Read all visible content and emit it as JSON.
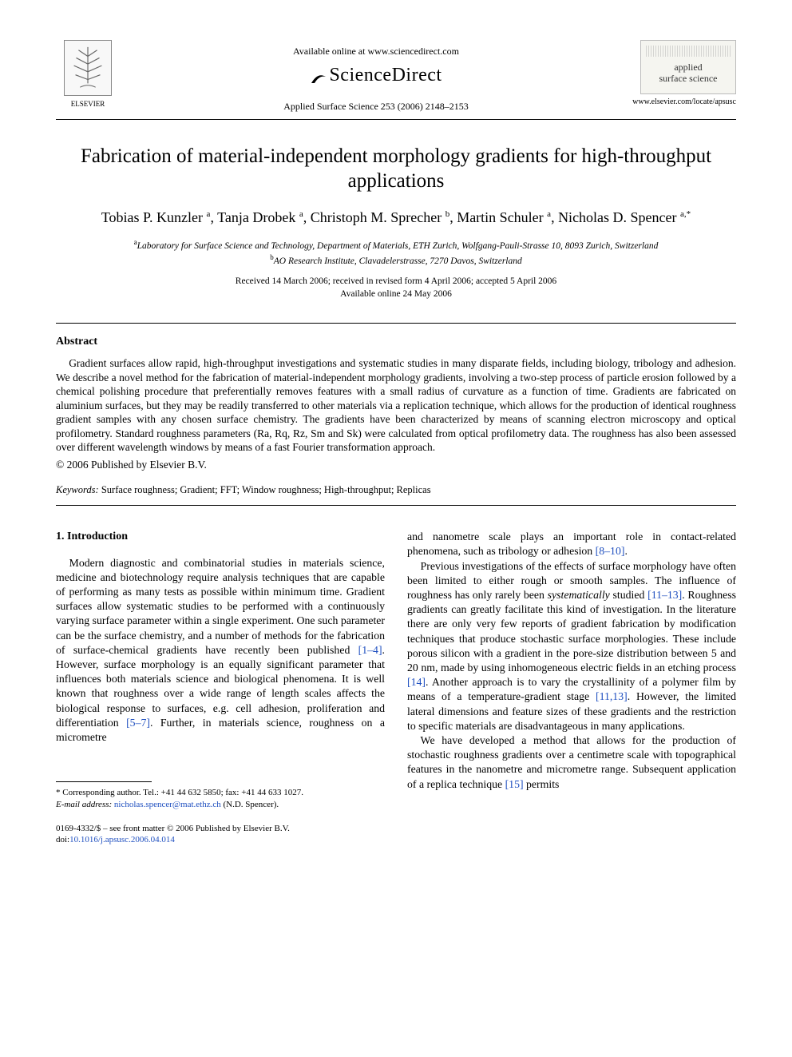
{
  "header": {
    "elsevier_label": "ELSEVIER",
    "available_online": "Available online at www.sciencedirect.com",
    "sciencedirect": "ScienceDirect",
    "journal_ref": "Applied Surface Science 253 (2006) 2148–2153",
    "cover_title_line1": "applied",
    "cover_title_line2": "surface science",
    "journal_url": "www.elsevier.com/locate/apsusc"
  },
  "article": {
    "title": "Fabrication of material-independent morphology gradients for high-throughput applications",
    "authors_html": "Tobias P. Kunzler <sup>a</sup>, Tanja Drobek <sup>a</sup>, Christoph M. Sprecher <sup>b</sup>, Martin Schuler <sup>a</sup>, Nicholas D. Spencer <sup>a,*</sup>",
    "affiliation_a": "Laboratory for Surface Science and Technology, Department of Materials, ETH Zurich, Wolfgang-Pauli-Strasse 10, 8093 Zurich, Switzerland",
    "affiliation_b": "AO Research Institute, Clavadelerstrasse, 7270 Davos, Switzerland",
    "dates_line1": "Received 14 March 2006; received in revised form 4 April 2006; accepted 5 April 2006",
    "dates_line2": "Available online 24 May 2006"
  },
  "abstract": {
    "heading": "Abstract",
    "text": "Gradient surfaces allow rapid, high-throughput investigations and systematic studies in many disparate fields, including biology, tribology and adhesion. We describe a novel method for the fabrication of material-independent morphology gradients, involving a two-step process of particle erosion followed by a chemical polishing procedure that preferentially removes features with a small radius of curvature as a function of time. Gradients are fabricated on aluminium surfaces, but they may be readily transferred to other materials via a replication technique, which allows for the production of identical roughness gradient samples with any chosen surface chemistry. The gradients have been characterized by means of scanning electron microscopy and optical profilometry. Standard roughness parameters (Ra, Rq, Rz, Sm and Sk) were calculated from optical profilometry data. The roughness has also been assessed over different wavelength windows by means of a fast Fourier transformation approach.",
    "copyright": "© 2006 Published by Elsevier B.V."
  },
  "keywords": {
    "label": "Keywords:",
    "list": "Surface roughness; Gradient; FFT; Window roughness; High-throughput; Replicas"
  },
  "intro": {
    "heading": "1. Introduction",
    "p1_a": "Modern diagnostic and combinatorial studies in materials science, medicine and biotechnology require analysis techniques that are capable of performing as many tests as possible within minimum time. Gradient surfaces allow systematic studies to be performed with a continuously varying surface parameter within a single experiment. One such parameter can be the surface chemistry, and a number of methods for the fabrication of surface-chemical gradients have recently been published ",
    "ref1": "[1–4]",
    "p1_b": ". However, surface morphology is an equally significant parameter that influences both materials science and biological phenomena. It is well known that roughness over a wide range of length scales affects the biological response to surfaces, e.g. cell adhesion, proliferation and differentiation ",
    "ref2": "[5–7]",
    "p1_c": ". Further, in materials science, roughness on a micrometre",
    "p2_a": "and nanometre scale plays an important role in contact-related phenomena, such as tribology or adhesion ",
    "ref3": "[8–10]",
    "p2_b": ".",
    "p3_a": "Previous investigations of the effects of surface morphology have often been limited to either rough or smooth samples. The influence of roughness has only rarely been ",
    "p3_em": "systematically",
    "p3_b": " studied ",
    "ref4": "[11–13]",
    "p3_c": ". Roughness gradients can greatly facilitate this kind of investigation. In the literature there are only very few reports of gradient fabrication by modification techniques that produce stochastic surface morphologies. These include porous silicon with a gradient in the pore-size distribution between 5 and 20 nm, made by using inhomogeneous electric fields in an etching process ",
    "ref5": "[14]",
    "p3_d": ". Another approach is to vary the crystallinity of a polymer film by means of a temperature-gradient stage ",
    "ref6": "[11,13]",
    "p3_e": ". However, the limited lateral dimensions and feature sizes of these gradients and the restriction to specific materials are disadvantageous in many applications.",
    "p4_a": "We have developed a method that allows for the production of stochastic roughness gradients over a centimetre scale with topographical features in the nanometre and micrometre range. Subsequent application of a replica technique ",
    "ref7": "[15]",
    "p4_b": " permits"
  },
  "footnote": {
    "corresponding": "* Corresponding author. Tel.: +41 44 632 5850; fax: +41 44 633 1027.",
    "email_label": "E-mail address:",
    "email": "nicholas.spencer@mat.ethz.ch",
    "email_who": "(N.D. Spencer)."
  },
  "footer": {
    "front_matter": "0169-4332/$ – see front matter © 2006 Published by Elsevier B.V.",
    "doi_label": "doi:",
    "doi": "10.1016/j.apsusc.2006.04.014"
  },
  "colors": {
    "link": "#2050c0",
    "text": "#000000",
    "background": "#ffffff"
  }
}
